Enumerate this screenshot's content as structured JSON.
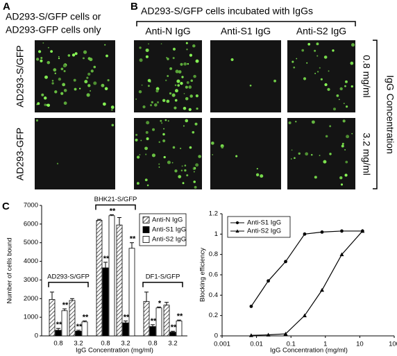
{
  "panel_a": {
    "letter": "A",
    "title_lines": [
      "AD293-S/GFP cells or",
      "AD293-GFP cells only"
    ],
    "row_labels": [
      "AD293-S/GFP",
      "AD293-GFP"
    ]
  },
  "panel_b": {
    "letter": "B",
    "title": "AD293-S/GFP cells incubated with IgGs",
    "column_labels": [
      "Anti-N IgG",
      "Anti-S1 IgG",
      "Anti-S2 IgG"
    ],
    "row_labels": [
      "0.8 mg/ml",
      "3.2 mg/ml"
    ],
    "side_label": "IgG Concentration"
  },
  "panel_c": {
    "letter": "C"
  },
  "chart_data": [
    {
      "type": "bar",
      "ylabel": "Number of cells bound",
      "xlabel": "IgG Concentration (mg/ml)",
      "categories": [
        "0.8",
        "3.2",
        "0.8",
        "3.2",
        "0.8",
        "3.2"
      ],
      "group_labels": [
        "AD293-S/GFP",
        "BHK21-S/GFP",
        "DF1-S/GFP"
      ],
      "ylim": [
        0,
        7000
      ],
      "yticks": [
        0,
        1000,
        2000,
        3000,
        4000,
        5000,
        6000,
        7000
      ],
      "legend": "upper right",
      "series": [
        {
          "name": "Anti-N IgG",
          "color": "#333333",
          "hatch": true,
          "values": [
            1950,
            1900,
            6200,
            5950,
            1850,
            1650
          ],
          "error": [
            400,
            100,
            50,
            400,
            500,
            150
          ]
        },
        {
          "name": "Anti-S1 IgG",
          "color": "#000000",
          "hatch": false,
          "values": [
            300,
            250,
            3650,
            700,
            500,
            200
          ],
          "error": [
            100,
            50,
            300,
            100,
            100,
            50
          ],
          "significance": [
            "**",
            "**",
            "**",
            "**",
            "**",
            "**"
          ]
        },
        {
          "name": "Anti-S2 IgG",
          "color": "#ffffff",
          "hatch": false,
          "values": [
            1350,
            750,
            6450,
            4700,
            1500,
            800
          ],
          "error": [
            100,
            50,
            50,
            300,
            50,
            50
          ],
          "significance": [
            "**",
            "**",
            "**",
            "**",
            "*",
            "**"
          ]
        }
      ]
    },
    {
      "type": "line",
      "ylabel": "Blocking efficiency",
      "xlabel": "IgG Concentration (mg/ml)",
      "log_x": true,
      "xlim": [
        0.001,
        100
      ],
      "xticks": [
        0.001,
        0.01,
        0.1,
        1,
        10,
        100
      ],
      "ylim": [
        0,
        1.2
      ],
      "yticks": [
        0,
        0.2,
        0.4,
        0.6,
        0.8,
        1,
        1.2
      ],
      "legend": "upper left",
      "series": [
        {
          "name": "Anti-S1 IgG",
          "color": "#000000",
          "marker": "circle",
          "x": [
            0.007,
            0.022,
            0.07,
            0.25,
            0.8,
            3,
            12
          ],
          "values": [
            0.29,
            0.54,
            0.73,
            1.0,
            1.02,
            1.03,
            1.03
          ]
        },
        {
          "name": "Anti-S2 IgG",
          "color": "#000000",
          "marker": "triangle",
          "x": [
            0.007,
            0.022,
            0.07,
            0.25,
            0.8,
            3,
            12
          ],
          "values": [
            0.005,
            0.01,
            0.02,
            0.2,
            0.45,
            0.8,
            1.03
          ]
        }
      ]
    }
  ]
}
